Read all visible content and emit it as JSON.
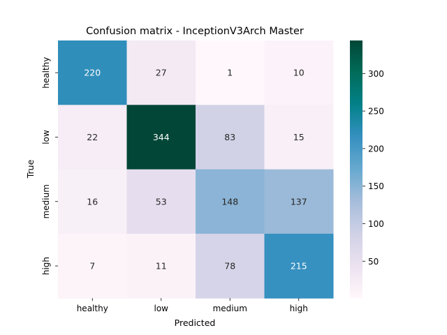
{
  "chart_data": {
    "type": "heatmap",
    "title": "Confusion matrix - InceptionV3Arch Master",
    "xlabel": "Predicted",
    "ylabel": "True",
    "x_categories": [
      "healthy",
      "low",
      "medium",
      "high"
    ],
    "y_categories": [
      "healthy",
      "low",
      "medium",
      "high"
    ],
    "values": [
      [
        220,
        27,
        1,
        10
      ],
      [
        22,
        344,
        83,
        15
      ],
      [
        16,
        53,
        148,
        137
      ],
      [
        7,
        11,
        78,
        215
      ]
    ],
    "colorbar": {
      "min": 1,
      "max": 344,
      "ticks": [
        50,
        100,
        150,
        200,
        250,
        300
      ]
    },
    "colormap": "PuBuGn",
    "colormap_stops": [
      "#fff7fb",
      "#ece2f0",
      "#d0d1e6",
      "#a6bddb",
      "#67a9cf",
      "#3690c0",
      "#02818a",
      "#016c59",
      "#014636"
    ]
  }
}
